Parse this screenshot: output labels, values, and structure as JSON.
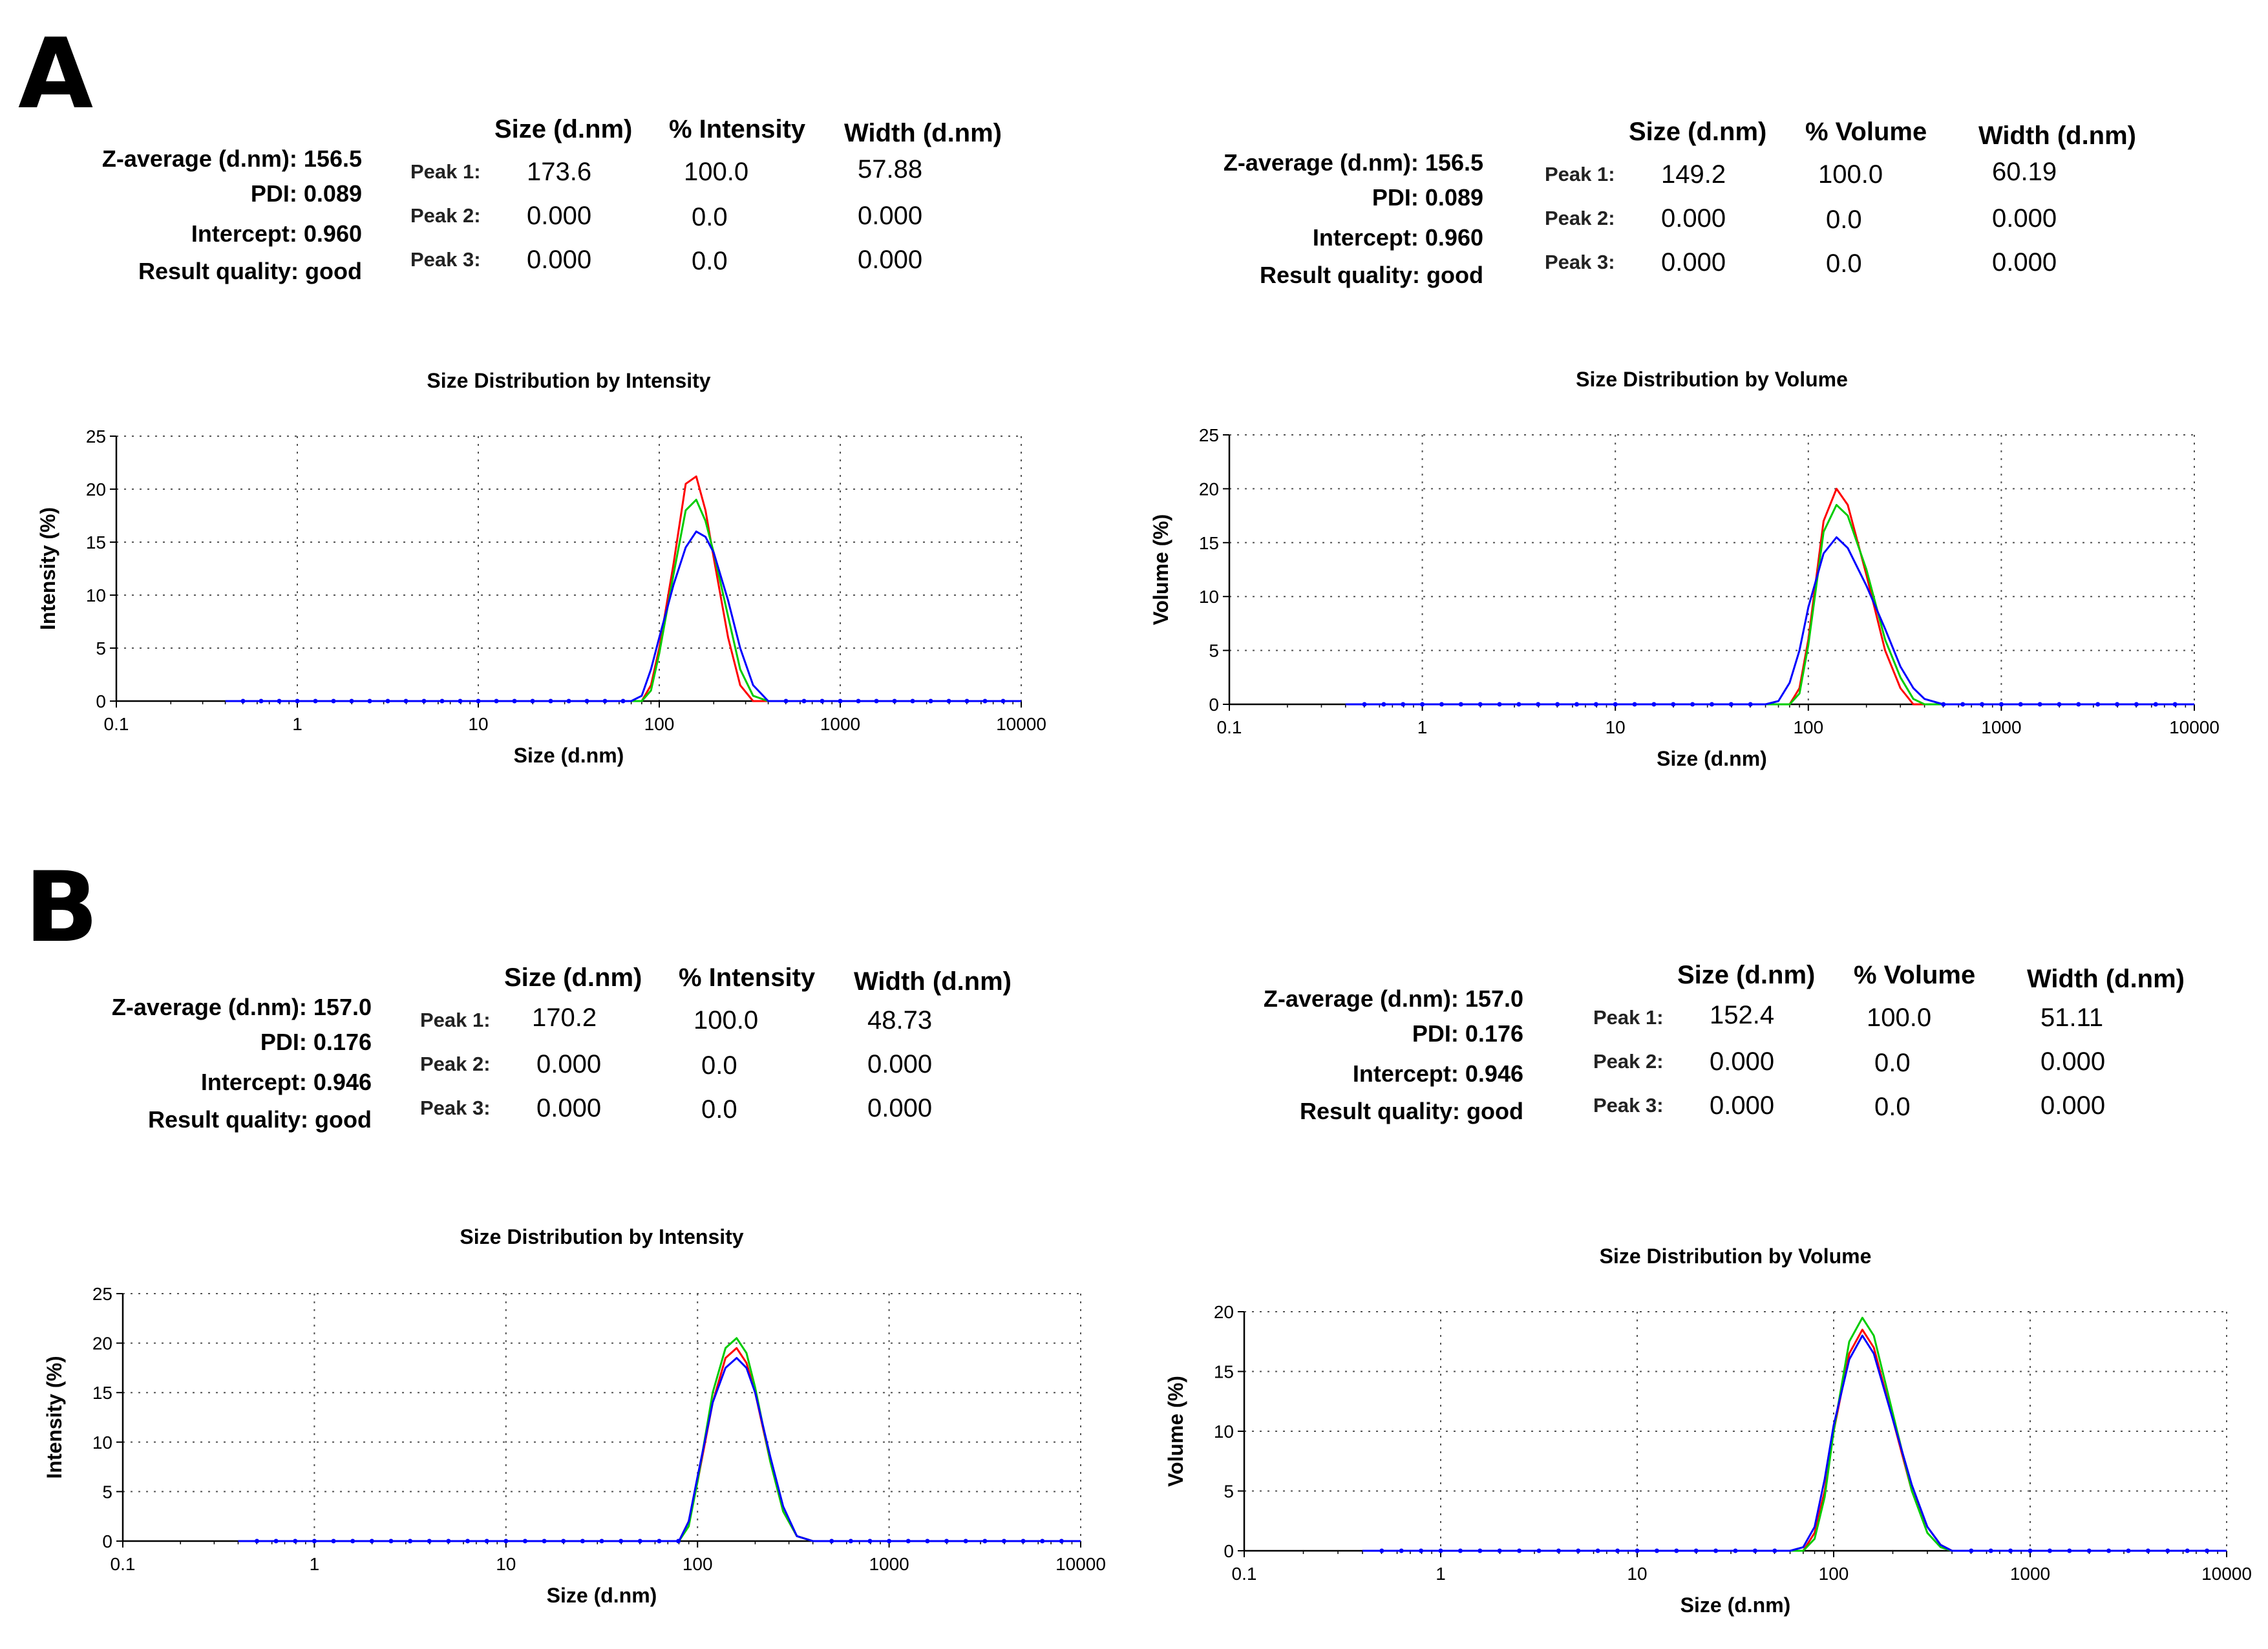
{
  "figure": {
    "panels": [
      {
        "label": "A",
        "left": {
          "summary": {
            "z_average": "Z-average (d.nm): 156.5",
            "pdi": "PDI: 0.089",
            "intercept": "Intercept: 0.960",
            "quality": "Result quality: good"
          },
          "headers": [
            "Size (d.nm)",
            "% Intensity",
            "Width (d.nm)"
          ],
          "peaks": [
            {
              "label": "Peak 1:",
              "size": "173.6",
              "pct": "100.0",
              "width": "57.88"
            },
            {
              "label": "Peak 2:",
              "size": "0.000",
              "pct": "0.0",
              "width": "0.000"
            },
            {
              "label": "Peak 3:",
              "size": "0.000",
              "pct": "0.0",
              "width": "0.000"
            }
          ]
        },
        "right": {
          "summary": {
            "z_average": "Z-average (d.nm): 156.5",
            "pdi": "PDI: 0.089",
            "intercept": "Intercept: 0.960",
            "quality": "Result quality: good"
          },
          "headers": [
            "Size (d.nm)",
            "% Volume",
            "Width (d.nm)"
          ],
          "peaks": [
            {
              "label": "Peak 1:",
              "size": "149.2",
              "pct": "100.0",
              "width": "60.19"
            },
            {
              "label": "Peak 2:",
              "size": "0.000",
              "pct": "0.0",
              "width": "0.000"
            },
            {
              "label": "Peak 3:",
              "size": "0.000",
              "pct": "0.0",
              "width": "0.000"
            }
          ]
        }
      },
      {
        "label": "B",
        "left": {
          "summary": {
            "z_average": "Z-average (d.nm): 157.0",
            "pdi": "PDI: 0.176",
            "intercept": "Intercept: 0.946",
            "quality": "Result quality: good"
          },
          "headers": [
            "Size (d.nm)",
            "% Intensity",
            "Width (d.nm)"
          ],
          "peaks": [
            {
              "label": "Peak 1:",
              "size": "170.2",
              "pct": "100.0",
              "width": "48.73"
            },
            {
              "label": "Peak 2:",
              "size": "0.000",
              "pct": "0.0",
              "width": "0.000"
            },
            {
              "label": "Peak 3:",
              "size": "0.000",
              "pct": "0.0",
              "width": "0.000"
            }
          ]
        },
        "right": {
          "summary": {
            "z_average": "Z-average (d.nm): 157.0",
            "pdi": "PDI: 0.176",
            "intercept": "Intercept: 0.946",
            "quality": "Result quality: good"
          },
          "headers": [
            "Size (d.nm)",
            "% Volume",
            "Width (d.nm)"
          ],
          "peaks": [
            {
              "label": "Peak 1:",
              "size": "152.4",
              "pct": "100.0",
              "width": "51.11"
            },
            {
              "label": "Peak 2:",
              "size": "0.000",
              "pct": "0.0",
              "width": "0.000"
            },
            {
              "label": "Peak 3:",
              "size": "0.000",
              "pct": "0.0",
              "width": "0.000"
            }
          ]
        }
      }
    ]
  },
  "chart_data": [
    {
      "type": "line",
      "title": "Size Distribution by Intensity",
      "xlabel": "Size (d.nm)",
      "ylabel": "Intensity (%)",
      "xscale": "log",
      "xlim": [
        0.1,
        10000
      ],
      "ylim": [
        0,
        25
      ],
      "xticks": [
        "0.1",
        "1",
        "10",
        "100",
        "1000",
        "10000"
      ],
      "yticks": [
        "0",
        "5",
        "10",
        "15",
        "20",
        "25"
      ],
      "grid": true,
      "x": [
        70,
        80,
        90,
        100,
        120,
        140,
        160,
        180,
        200,
        240,
        280,
        330,
        400,
        500
      ],
      "series": [
        {
          "color": "#ff0000",
          "values": [
            0,
            0,
            1.5,
            5,
            13,
            20.5,
            21.2,
            18,
            13.5,
            6,
            1.5,
            0,
            0,
            0
          ]
        },
        {
          "color": "#00cc00",
          "values": [
            0,
            0,
            1,
            4.5,
            12,
            18,
            19,
            17,
            14,
            8,
            3,
            0.5,
            0,
            0
          ]
        },
        {
          "color": "#0000ff",
          "values": [
            0,
            0.5,
            3,
            6,
            11,
            14.5,
            16,
            15.5,
            14,
            9.5,
            5,
            1.5,
            0,
            0
          ]
        }
      ]
    },
    {
      "type": "line",
      "title": "Size Distribution by Volume",
      "xlabel": "Size (d.nm)",
      "ylabel": "Volume (%)",
      "xscale": "log",
      "xlim": [
        0.1,
        10000
      ],
      "ylim": [
        0,
        25
      ],
      "xticks": [
        "0.1",
        "1",
        "10",
        "100",
        "1000",
        "10000"
      ],
      "yticks": [
        "0",
        "5",
        "10",
        "15",
        "20",
        "25"
      ],
      "grid": true,
      "x": [
        60,
        70,
        80,
        90,
        100,
        120,
        140,
        160,
        200,
        250,
        300,
        350,
        400,
        500
      ],
      "series": [
        {
          "color": "#ff0000",
          "values": [
            0,
            0,
            0,
            1.5,
            6,
            17,
            20,
            18.5,
            12,
            5,
            1.5,
            0,
            0,
            0
          ]
        },
        {
          "color": "#00cc00",
          "values": [
            0,
            0,
            0,
            1,
            5.5,
            16,
            18.5,
            17.5,
            12.5,
            6,
            2.5,
            0.5,
            0,
            0
          ]
        },
        {
          "color": "#0000ff",
          "values": [
            0,
            0.3,
            2,
            5,
            9,
            14,
            15.5,
            14.5,
            11,
            7,
            3.5,
            1.5,
            0.5,
            0
          ]
        }
      ]
    },
    {
      "type": "line",
      "title": "Size Distribution by Intensity",
      "xlabel": "Size (d.nm)",
      "ylabel": "Intensity (%)",
      "xscale": "log",
      "xlim": [
        0.1,
        10000
      ],
      "ylim": [
        0,
        25
      ],
      "xticks": [
        "0.1",
        "1",
        "10",
        "100",
        "1000",
        "10000"
      ],
      "yticks": [
        "0",
        "5",
        "10",
        "15",
        "20",
        "25"
      ],
      "grid": true,
      "x": [
        80,
        90,
        100,
        120,
        140,
        160,
        180,
        200,
        240,
        280,
        330,
        400
      ],
      "series": [
        {
          "color": "#ff0000",
          "values": [
            0,
            2,
            6,
            14,
            18.5,
            19.5,
            18,
            15,
            8,
            3,
            0.5,
            0
          ]
        },
        {
          "color": "#00cc00",
          "values": [
            0,
            1.5,
            6,
            15,
            19.5,
            20.5,
            19,
            15.5,
            8,
            3,
            0.5,
            0
          ]
        },
        {
          "color": "#0000ff",
          "values": [
            0,
            2,
            6.5,
            14,
            17.5,
            18.5,
            17.5,
            15,
            8.5,
            3.5,
            0.5,
            0
          ]
        }
      ]
    },
    {
      "type": "line",
      "title": "Size Distribution by Volume",
      "xlabel": "Size (d.nm)",
      "ylabel": "Volume (%)",
      "xscale": "log",
      "xlim": [
        0.1,
        10000
      ],
      "ylim": [
        0,
        20
      ],
      "xticks": [
        "0.1",
        "1",
        "10",
        "100",
        "1000",
        "10000"
      ],
      "yticks": [
        "0",
        "5",
        "10",
        "15",
        "20"
      ],
      "grid": true,
      "x": [
        60,
        70,
        80,
        90,
        100,
        120,
        140,
        160,
        200,
        250,
        300,
        350,
        400
      ],
      "series": [
        {
          "color": "#ff0000",
          "values": [
            0,
            0,
            1.5,
            5,
            10,
            16.5,
            18.5,
            17,
            11,
            5,
            2,
            0.5,
            0
          ]
        },
        {
          "color": "#00cc00",
          "values": [
            0,
            0,
            1,
            4.5,
            10,
            17.5,
            19.5,
            18,
            11.5,
            5,
            1.5,
            0.3,
            0
          ]
        },
        {
          "color": "#0000ff",
          "values": [
            0,
            0.3,
            2,
            6,
            10.5,
            16,
            18,
            16.5,
            11,
            5.5,
            2,
            0.5,
            0
          ]
        }
      ]
    }
  ]
}
